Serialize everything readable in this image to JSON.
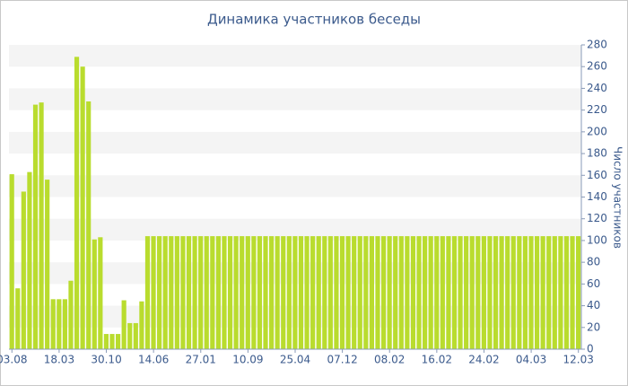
{
  "chart_data": {
    "type": "bar",
    "title": "Динамика участников беседы",
    "y_label": "Число участников",
    "categories": [
      "03.08",
      null,
      null,
      null,
      null,
      null,
      null,
      null,
      "18.03",
      null,
      null,
      null,
      null,
      null,
      null,
      null,
      "30.10",
      null,
      null,
      null,
      null,
      null,
      null,
      null,
      "14.06",
      null,
      null,
      null,
      null,
      null,
      null,
      null,
      "27.01",
      null,
      null,
      null,
      null,
      null,
      null,
      null,
      "10.09",
      null,
      null,
      null,
      null,
      null,
      null,
      null,
      "25.04",
      null,
      null,
      null,
      null,
      null,
      null,
      null,
      "07.12",
      null,
      null,
      null,
      null,
      null,
      null,
      null,
      "08.02",
      null,
      null,
      null,
      null,
      null,
      null,
      null,
      "16.02",
      null,
      null,
      null,
      null,
      null,
      null,
      null,
      "24.02",
      null,
      null,
      null,
      null,
      null,
      null,
      null,
      "04.03",
      null,
      null,
      null,
      null,
      null,
      null,
      null,
      "12.03"
    ],
    "values": [
      161,
      56,
      145,
      163,
      225,
      227,
      156,
      46,
      46,
      46,
      63,
      269,
      260,
      228,
      101,
      103,
      14,
      14,
      14,
      45,
      24,
      24,
      44,
      104,
      104,
      104,
      104,
      104,
      104,
      104,
      104,
      104,
      104,
      104,
      104,
      104,
      104,
      104,
      104,
      104,
      104,
      104,
      104,
      104,
      104,
      104,
      104,
      104,
      104,
      104,
      104,
      104,
      104,
      104,
      104,
      104,
      104,
      104,
      104,
      104,
      104,
      104,
      104,
      104,
      104,
      104,
      104,
      104,
      104,
      104,
      104,
      104,
      104,
      104,
      104,
      104,
      104,
      104,
      104,
      104,
      104,
      104,
      104,
      104,
      104,
      104,
      104,
      104,
      104,
      104,
      104,
      104,
      104,
      104,
      104,
      104,
      104
    ],
    "color": "#b9dc2e",
    "ylim": [
      0,
      280
    ],
    "yticks": [
      0,
      20,
      40,
      60,
      80,
      100,
      120,
      140,
      160,
      180,
      200,
      220,
      240,
      260,
      280
    ],
    "grid": true
  }
}
